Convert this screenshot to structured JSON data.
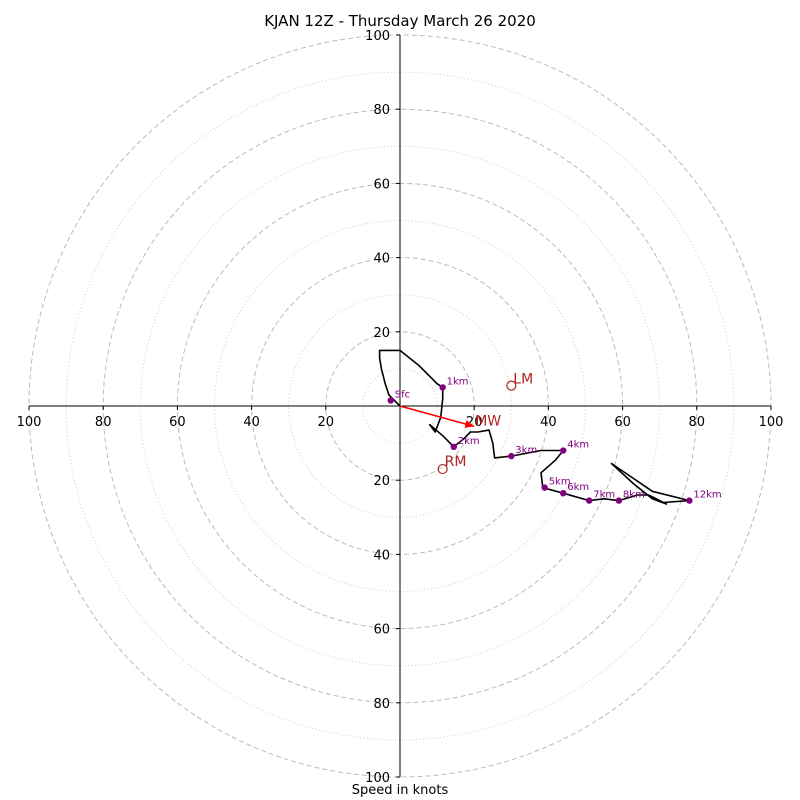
{
  "chart_data": {
    "type": "hodograph",
    "title": "KJAN 12Z - Thursday March 26 2020",
    "xlabel": "Speed in knots",
    "units": "knots",
    "axis_range": [
      -100,
      100
    ],
    "major_rings": [
      20,
      40,
      60,
      80,
      100
    ],
    "minor_rings": [
      10,
      30,
      50,
      70,
      90
    ],
    "x_tick_labels": [
      {
        "value": -100,
        "label": "100"
      },
      {
        "value": -80,
        "label": "80"
      },
      {
        "value": -60,
        "label": "60"
      },
      {
        "value": -40,
        "label": "40"
      },
      {
        "value": -20,
        "label": "20"
      },
      {
        "value": 20,
        "label": "20"
      },
      {
        "value": 40,
        "label": "40"
      },
      {
        "value": 60,
        "label": "60"
      },
      {
        "value": 80,
        "label": "80"
      },
      {
        "value": 100,
        "label": "100"
      }
    ],
    "y_tick_labels": [
      {
        "value": 100,
        "label": "100"
      },
      {
        "value": 80,
        "label": "80"
      },
      {
        "value": 60,
        "label": "60"
      },
      {
        "value": 40,
        "label": "40"
      },
      {
        "value": 20,
        "label": "20"
      },
      {
        "value": -20,
        "label": "20"
      },
      {
        "value": -40,
        "label": "40"
      },
      {
        "value": -60,
        "label": "60"
      },
      {
        "value": -80,
        "label": "80"
      },
      {
        "value": -100,
        "label": "100"
      }
    ],
    "trace": [
      [
        0,
        0
      ],
      [
        -3,
        3
      ],
      [
        -4,
        6
      ],
      [
        -5,
        10
      ],
      [
        -5.5,
        13
      ],
      [
        -5.5,
        15
      ],
      [
        0,
        15
      ],
      [
        5,
        11
      ],
      [
        10,
        6
      ],
      [
        11.5,
        5
      ],
      [
        11.5,
        2
      ],
      [
        11,
        -3
      ],
      [
        9.5,
        -7
      ],
      [
        8,
        -5
      ],
      [
        11.5,
        -8
      ],
      [
        14.5,
        -11
      ],
      [
        17,
        -9
      ],
      [
        19,
        -7
      ],
      [
        21,
        -7
      ],
      [
        24,
        -6.5
      ],
      [
        25,
        -10
      ],
      [
        25.5,
        -14
      ],
      [
        30,
        -13.5
      ],
      [
        38,
        -12
      ],
      [
        44,
        -12
      ],
      [
        42,
        -14.5
      ],
      [
        38,
        -18
      ],
      [
        38.5,
        -22
      ],
      [
        44,
        -23.5
      ],
      [
        51,
        -25.5
      ],
      [
        55,
        -25
      ],
      [
        59,
        -25.5
      ],
      [
        64,
        -24
      ],
      [
        67,
        -24
      ],
      [
        71,
        -26
      ],
      [
        78,
        -25.5
      ],
      [
        68,
        -23
      ],
      [
        57,
        -15.5
      ],
      [
        63,
        -21
      ],
      [
        68,
        -25
      ],
      [
        72,
        -26.5
      ]
    ],
    "height_points": [
      {
        "label": "Sfc",
        "u": -2.5,
        "v": 1.5
      },
      {
        "label": "1km",
        "u": 11.5,
        "v": 5
      },
      {
        "label": "2km",
        "u": 14.5,
        "v": -11
      },
      {
        "label": "3km",
        "u": 30,
        "v": -13.5
      },
      {
        "label": "4km",
        "u": 44,
        "v": -12
      },
      {
        "label": "5km",
        "u": 39,
        "v": -22
      },
      {
        "label": "6km",
        "u": 44,
        "v": -23.5
      },
      {
        "label": "7km",
        "u": 51,
        "v": -25.5
      },
      {
        "label": "8km",
        "u": 59,
        "v": -25.5
      },
      {
        "label": "12km",
        "u": 78,
        "v": -25.5
      }
    ],
    "storm_motion": [
      {
        "label": "LM",
        "u": 30,
        "v": 5.5
      },
      {
        "label": "RM",
        "u": 11.5,
        "v": -17
      },
      {
        "label": "MW",
        "u": 20,
        "v": -5.5
      }
    ],
    "shear_vector": {
      "from": [
        0,
        0
      ],
      "to": [
        20,
        -5.5
      ],
      "color": "#ff0000"
    },
    "colors": {
      "trace": "#000000",
      "height_points": "#800080",
      "storm_motion": "#b22222",
      "grid": "#bbbbbb",
      "axes": "#000000"
    },
    "grid": true
  }
}
